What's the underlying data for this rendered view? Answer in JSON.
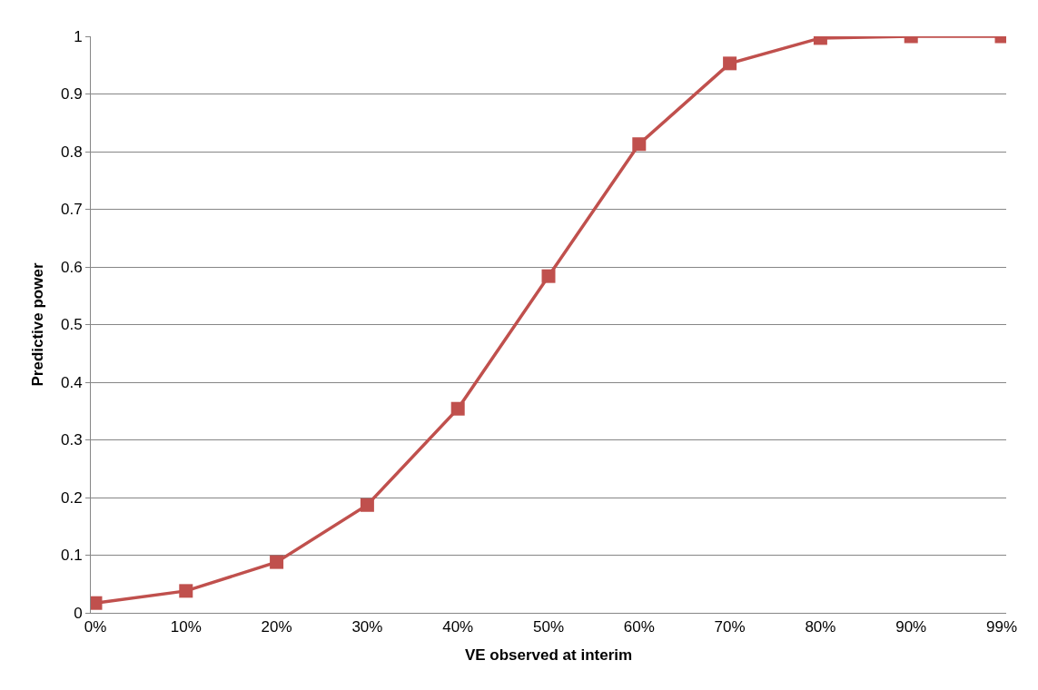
{
  "chart_data": {
    "type": "line",
    "xlabel": "VE observed at interim",
    "ylabel": "Predictive power",
    "categories": [
      "0%",
      "10%",
      "20%",
      "30%",
      "40%",
      "50%",
      "60%",
      "70%",
      "80%",
      "90%",
      "99%"
    ],
    "series": [
      {
        "color": "#c0504d",
        "values": [
          0.017,
          0.038,
          0.088,
          0.187,
          0.354,
          0.584,
          0.813,
          0.953,
          0.997,
          1.0,
          1.0
        ]
      }
    ],
    "ylim": [
      0,
      1
    ],
    "yticks": [
      0,
      0.1,
      0.2,
      0.3,
      0.4,
      0.5,
      0.6,
      0.7,
      0.8,
      0.9,
      1
    ],
    "grid": "y",
    "legend": false,
    "marker": "square",
    "line_style": "solid"
  }
}
